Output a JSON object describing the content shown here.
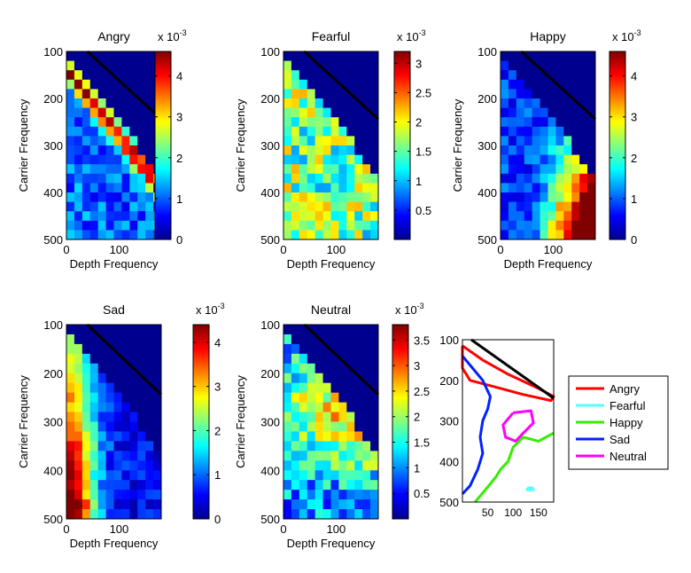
{
  "figure": {
    "colormap": [
      "#00008f",
      "#0000ff",
      "#0080ff",
      "#00ffff",
      "#80ff80",
      "#ffff00",
      "#ff8000",
      "#ff0000",
      "#800000"
    ],
    "diagonal_color": "#000000"
  },
  "chart_data": [
    {
      "type": "heatmap",
      "title": "Angry",
      "xlabel": "Depth Frequency",
      "ylabel": "Carrier Frequency",
      "x_ticks": [
        "0",
        "100"
      ],
      "y_ticks": [
        "100",
        "200",
        "300",
        "400",
        "500"
      ],
      "xlim": [
        0,
        180
      ],
      "ylim": [
        500,
        100
      ],
      "colorbar": {
        "exponent_label": "x 10",
        "exponent_power": "-3",
        "ticks": [
          "0",
          "1",
          "2",
          "3",
          "4"
        ],
        "range": [
          0,
          4.6
        ]
      },
      "pattern": "diagonal-band",
      "value_range": [
        0,
        4.6
      ]
    },
    {
      "type": "heatmap",
      "title": "Fearful",
      "xlabel": "Depth Frequency",
      "ylabel": "Carrier Frequency",
      "x_ticks": [
        "0",
        "100"
      ],
      "y_ticks": [
        "100",
        "200",
        "300",
        "400",
        "500"
      ],
      "xlim": [
        0,
        180
      ],
      "ylim": [
        500,
        100
      ],
      "colorbar": {
        "exponent_label": "x 10",
        "exponent_power": "-3",
        "ticks": [
          "0.5",
          "1",
          "1.5",
          "2",
          "2.5",
          "3"
        ],
        "range": [
          0,
          3.2
        ]
      },
      "pattern": "uniform-noise",
      "value_range": [
        0,
        3.2
      ]
    },
    {
      "type": "heatmap",
      "title": "Happy",
      "xlabel": "Depth Frequency",
      "ylabel": "Carrier Frequency",
      "x_ticks": [
        "0",
        "100"
      ],
      "y_ticks": [
        "100",
        "200",
        "300",
        "400",
        "500"
      ],
      "xlim": [
        0,
        180
      ],
      "ylim": [
        500,
        100
      ],
      "colorbar": {
        "exponent_label": "x 10",
        "exponent_power": "-3",
        "ticks": [
          "0",
          "1",
          "2",
          "3",
          "4"
        ],
        "range": [
          0,
          4.6
        ]
      },
      "pattern": "bottom-right",
      "value_range": [
        0,
        4.6
      ]
    },
    {
      "type": "heatmap",
      "title": "Sad",
      "xlabel": "Depth Frequency",
      "ylabel": "Carrier Frequency",
      "x_ticks": [
        "0",
        "100"
      ],
      "y_ticks": [
        "100",
        "200",
        "300",
        "400",
        "500"
      ],
      "xlim": [
        0,
        180
      ],
      "ylim": [
        500,
        100
      ],
      "colorbar": {
        "exponent_label": "x 10",
        "exponent_power": "-3",
        "ticks": [
          "0",
          "1",
          "2",
          "3",
          "4"
        ],
        "range": [
          0,
          4.4
        ]
      },
      "pattern": "left-column",
      "value_range": [
        0,
        4.4
      ]
    },
    {
      "type": "heatmap",
      "title": "Neutral",
      "xlabel": "Depth Frequency",
      "ylabel": "Carrier Frequency",
      "x_ticks": [
        "0",
        "100"
      ],
      "y_ticks": [
        "100",
        "200",
        "300",
        "400",
        "500"
      ],
      "xlim": [
        0,
        180
      ],
      "ylim": [
        500,
        100
      ],
      "colorbar": {
        "exponent_label": "x 10",
        "exponent_power": "-3",
        "ticks": [
          "0.5",
          "1",
          "1.5",
          "2",
          "2.5",
          "3",
          "3.5"
        ],
        "range": [
          0,
          3.8
        ]
      },
      "pattern": "center-noise",
      "value_range": [
        0,
        3.8
      ]
    },
    {
      "type": "line",
      "title": "",
      "x_ticks": [
        "50",
        "100",
        "150"
      ],
      "y_ticks": [
        "100",
        "200",
        "300",
        "400",
        "500"
      ],
      "xlim": [
        0,
        180
      ],
      "ylim": [
        500,
        100
      ],
      "legend_position": "right",
      "series": [
        {
          "name": "Angry",
          "color": "#ff0000",
          "points": [
            [
              0,
              115
            ],
            [
              40,
              150
            ],
            [
              90,
              185
            ],
            [
              150,
              220
            ],
            [
              180,
              240
            ],
            [
              175,
              250
            ],
            [
              120,
              235
            ],
            [
              60,
              215
            ],
            [
              15,
              200
            ],
            [
              0,
              170
            ],
            [
              0,
              115
            ]
          ]
        },
        {
          "name": "Fearful",
          "color": "#55ffff",
          "points": [
            [
              128,
              465
            ],
            [
              138,
              465
            ],
            [
              140,
              470
            ],
            [
              128,
              470
            ],
            [
              128,
              465
            ]
          ]
        },
        {
          "name": "Happy",
          "color": "#33ee00",
          "points": [
            [
              180,
              330
            ],
            [
              150,
              350
            ],
            [
              120,
              340
            ],
            [
              100,
              365
            ],
            [
              90,
              400
            ],
            [
              75,
              420
            ],
            [
              65,
              440
            ],
            [
              45,
              470
            ],
            [
              25,
              500
            ]
          ]
        },
        {
          "name": "Sad",
          "color": "#0022ff",
          "points": [
            [
              0,
              140
            ],
            [
              20,
              170
            ],
            [
              40,
              200
            ],
            [
              55,
              240
            ],
            [
              50,
              270
            ],
            [
              40,
              300
            ],
            [
              35,
              340
            ],
            [
              40,
              380
            ],
            [
              30,
              420
            ],
            [
              15,
              460
            ],
            [
              0,
              480
            ]
          ]
        },
        {
          "name": "Neutral",
          "color": "#ff00ff",
          "points": [
            [
              100,
              280
            ],
            [
              135,
              275
            ],
            [
              140,
              305
            ],
            [
              120,
              330
            ],
            [
              105,
              350
            ],
            [
              85,
              340
            ],
            [
              80,
              310
            ],
            [
              100,
              280
            ]
          ]
        }
      ]
    }
  ]
}
